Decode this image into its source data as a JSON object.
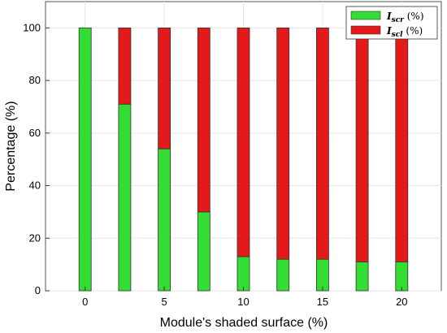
{
  "chart_data": {
    "type": "bar",
    "stacked": true,
    "title": "",
    "xlabel": "Module's shaded surface (%)",
    "ylabel": "Percentage (%)",
    "ylim": [
      0,
      110
    ],
    "yticks": [
      0,
      20,
      40,
      60,
      80,
      100
    ],
    "xlim": [
      -2.5,
      22.5
    ],
    "xticks": [
      0,
      5,
      10,
      15,
      20
    ],
    "grid": true,
    "legend_position": "top-right",
    "x": [
      0,
      2.5,
      5,
      7.5,
      10,
      12.5,
      15,
      17.5,
      20
    ],
    "series": [
      {
        "name": "I_scr (%)",
        "legend_main": "I",
        "legend_sub": "scr",
        "legend_suffix": " (%)",
        "color": "#33dd33",
        "values": [
          100,
          71,
          54,
          30,
          13,
          12,
          12,
          11,
          11
        ]
      },
      {
        "name": "I_scl (%)",
        "legend_main": "I",
        "legend_sub": "scl",
        "legend_suffix": " (%)",
        "color": "#e41a1a",
        "values": [
          0,
          29,
          46,
          70,
          87,
          88,
          88,
          89,
          89
        ]
      }
    ]
  }
}
